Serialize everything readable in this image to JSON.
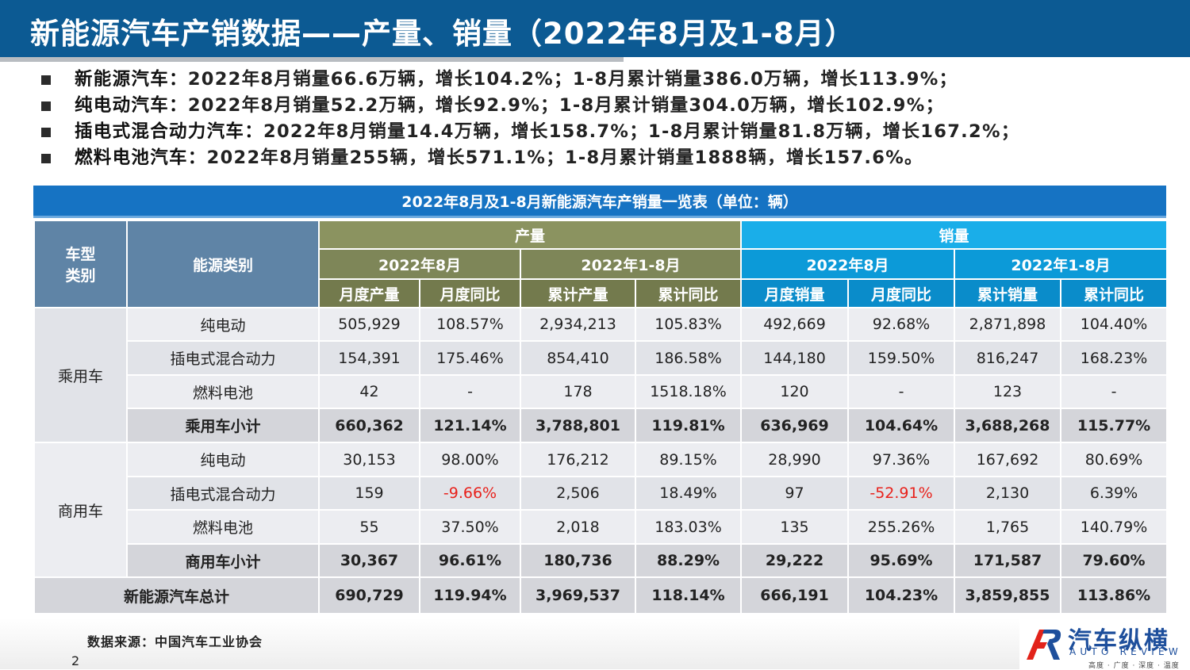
{
  "slide_title": "新能源汽车产销数据——产量、销量（2022年8月及1-8月）",
  "bullets": [
    {
      "label": "新能源汽车：",
      "text": "2022年8月销量66.6万辆，增长104.2%；1-8月累计销量386.0万辆，增长113.9%；"
    },
    {
      "label": "纯电动汽车：",
      "text": "2022年8月销量52.2万辆，增长92.9%；1-8月累计销量304.0万辆，增长102.9%；"
    },
    {
      "label": "插电式混合动力汽车：",
      "text": "2022年8月销量14.4万辆，增长158.7%；1-8月累计销量81.8万辆，增长167.2%；"
    },
    {
      "label": "燃料电池汽车：",
      "text": "2022年8月销量255辆，增长571.1%；1-8月累计销量1888辆，增长157.6%。"
    }
  ],
  "table": {
    "caption": "2022年8月及1-8月新能源汽车产销量一览表（单位：辆）",
    "header": {
      "vehicle_type_line1": "车型",
      "vehicle_type_line2": "类别",
      "energy_type": "能源类别",
      "production": "产量",
      "sales": "销量",
      "aug": "2022年8月",
      "jan_aug": "2022年1-8月",
      "cols": [
        "月度产量",
        "月度同比",
        "累计产量",
        "累计同比",
        "月度销量",
        "月度同比",
        "累计销量",
        "累计同比"
      ]
    },
    "groups": [
      {
        "name": "乘用车",
        "rows": [
          {
            "energy": "纯电动",
            "values": [
              "505,929",
              "108.57%",
              "2,934,213",
              "105.83%",
              "492,669",
              "92.68%",
              "2,871,898",
              "104.40%"
            ]
          },
          {
            "energy": "插电式混合动力",
            "values": [
              "154,391",
              "175.46%",
              "854,410",
              "186.58%",
              "144,180",
              "159.50%",
              "816,247",
              "168.23%"
            ]
          },
          {
            "energy": "燃料电池",
            "values": [
              "42",
              "-",
              "178",
              "1518.18%",
              "120",
              "-",
              "123",
              "-"
            ]
          }
        ],
        "subtotal": {
          "label": "乘用车小计",
          "values": [
            "660,362",
            "121.14%",
            "3,788,801",
            "119.81%",
            "636,969",
            "104.64%",
            "3,688,268",
            "115.77%"
          ]
        }
      },
      {
        "name": "商用车",
        "rows": [
          {
            "energy": "纯电动",
            "values": [
              "30,153",
              "98.00%",
              "176,212",
              "89.15%",
              "28,990",
              "97.36%",
              "167,692",
              "80.69%"
            ]
          },
          {
            "energy": "插电式混合动力",
            "values": [
              "159",
              "-9.66%",
              "2,506",
              "18.49%",
              "97",
              "-52.91%",
              "2,130",
              "6.39%"
            ]
          },
          {
            "energy": "燃料电池",
            "values": [
              "55",
              "37.50%",
              "2,018",
              "183.03%",
              "135",
              "255.26%",
              "1,765",
              "140.79%"
            ]
          }
        ],
        "subtotal": {
          "label": "商用车小计",
          "values": [
            "30,367",
            "96.61%",
            "180,736",
            "88.29%",
            "29,222",
            "95.69%",
            "171,587",
            "79.60%"
          ]
        }
      }
    ],
    "total": {
      "label": "新能源汽车总计",
      "values": [
        "690,729",
        "119.94%",
        "3,969,537",
        "118.14%",
        "666,191",
        "104.23%",
        "3,859,855",
        "113.86%"
      ]
    }
  },
  "source": "数据来源：中国汽车工业协会",
  "page_number": "2",
  "logo": {
    "cn": "汽车纵横",
    "en": "AUTO REVIEW",
    "slogan": "高度 · 广度 · 深度 · 温度"
  },
  "colors": {
    "title_bar": "#0c5a93",
    "caption": "#1673c3",
    "production_header": "#8b9360",
    "sales_header": "#1aaee9",
    "negative": "#e8211b"
  }
}
